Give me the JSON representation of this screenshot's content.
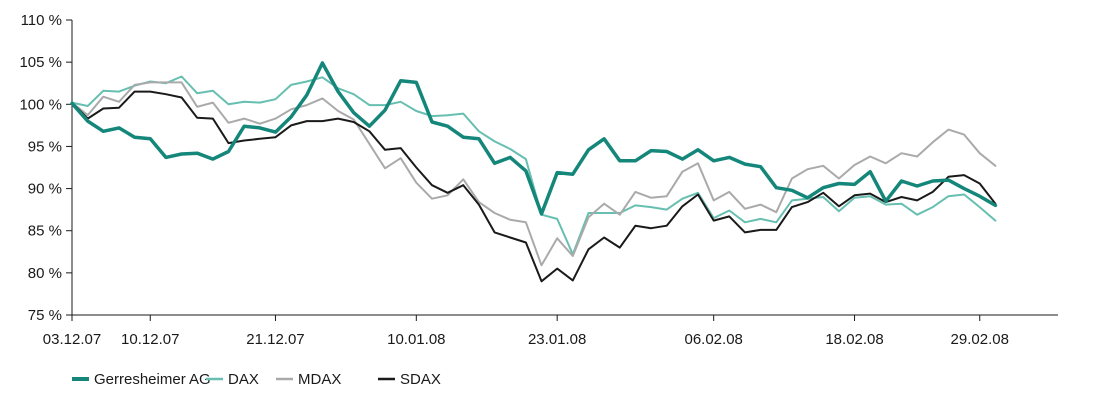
{
  "chart_data": {
    "type": "line",
    "title": "",
    "xlabel": "",
    "ylabel": "",
    "ylim": [
      75,
      110
    ],
    "ytick_values": [
      75,
      80,
      85,
      90,
      95,
      100,
      105,
      110
    ],
    "ytick_labels": [
      "75 %",
      "80 %",
      "85 %",
      "90 %",
      "95 %",
      "100 %",
      "105 %",
      "110 %"
    ],
    "x_index_range": [
      0,
      63
    ],
    "xticks": [
      {
        "index": 0,
        "label": "03.12.07"
      },
      {
        "index": 5,
        "label": "10.12.07"
      },
      {
        "index": 13,
        "label": "21.12.07"
      },
      {
        "index": 22,
        "label": "10.01.08"
      },
      {
        "index": 31,
        "label": "23.01.08"
      },
      {
        "index": 41,
        "label": "06.02.08"
      },
      {
        "index": 50,
        "label": "18.02.08"
      },
      {
        "index": 58,
        "label": "29.02.08"
      }
    ],
    "grid": false,
    "legend_position": "bottom-left",
    "series": [
      {
        "name": "Gerresheimer AG",
        "color": "#14877a",
        "width": 3.5,
        "values": [
          100.1,
          98,
          96.8,
          97.2,
          96.1,
          95.9,
          93.7,
          94.1,
          94.2,
          93.5,
          94.4,
          97.4,
          97.2,
          96.7,
          98.5,
          101.1,
          104.9,
          101.5,
          99,
          97.4,
          99.3,
          102.8,
          102.6,
          97.9,
          97.4,
          96.1,
          95.9,
          93,
          93.7,
          92.1,
          87,
          91.9,
          91.7,
          94.6,
          95.9,
          93.3,
          93.3,
          94.5,
          94.4,
          93.5,
          94.6,
          93.3,
          93.7,
          92.9,
          92.6,
          90.1,
          89.8,
          88.9,
          90.1,
          90.6,
          90.5,
          92,
          88.5,
          90.9,
          90.3,
          90.9,
          91,
          90,
          89.1,
          88
        ]
      },
      {
        "name": "DAX",
        "color": "#66bfb0",
        "width": 2,
        "values": [
          100.2,
          99.8,
          101.6,
          101.5,
          102.2,
          102.7,
          102.5,
          103.3,
          101.3,
          101.6,
          100,
          100.3,
          100.2,
          100.6,
          102.3,
          102.7,
          103.2,
          101.9,
          101.2,
          99.9,
          99.9,
          100.3,
          99.2,
          98.6,
          98.7,
          98.9,
          96.8,
          95.6,
          94.7,
          93.5,
          86.9,
          86.4,
          82.2,
          87.1,
          87.1,
          87.1,
          88,
          87.8,
          87.5,
          88.8,
          89.5,
          86.5,
          87.4,
          86,
          86.4,
          86,
          88.6,
          88.8,
          89,
          87.3,
          88.9,
          89.1,
          88.1,
          88.2,
          86.9,
          87.8,
          89.1,
          89.3,
          87.8,
          86.2
        ]
      },
      {
        "name": "MDAX",
        "color": "#aaaaaa",
        "width": 2,
        "values": [
          100.2,
          98.7,
          100.9,
          100.3,
          102.3,
          102.6,
          102.6,
          102.6,
          99.7,
          100.2,
          97.8,
          98.3,
          97.7,
          98.3,
          99.4,
          99.9,
          100.7,
          99.2,
          98.2,
          95.3,
          92.4,
          93.6,
          90.7,
          88.8,
          89.2,
          91.1,
          88.4,
          87.1,
          86.3,
          86,
          80.9,
          84.1,
          82,
          86.6,
          88.2,
          86.9,
          89.6,
          88.9,
          89.1,
          92,
          93,
          88.6,
          89.6,
          87.6,
          88.1,
          87.2,
          91.2,
          92.3,
          92.7,
          91.2,
          92.8,
          93.8,
          93,
          94.2,
          93.8,
          95.5,
          97,
          96.4,
          94.2,
          92.7
        ]
      },
      {
        "name": "SDAX",
        "color": "#1a1a1a",
        "width": 2,
        "values": [
          100.2,
          98.3,
          99.5,
          99.6,
          101.5,
          101.5,
          101.2,
          100.8,
          98.4,
          98.3,
          95.4,
          95.7,
          95.9,
          96.1,
          97.5,
          98,
          98,
          98.3,
          97.9,
          96.8,
          94.6,
          94.8,
          92.5,
          90.4,
          89.5,
          90.4,
          88.1,
          84.8,
          84.2,
          83.6,
          79,
          80.5,
          79.1,
          82.8,
          84.2,
          83,
          85.6,
          85.3,
          85.6,
          87.9,
          89.3,
          86.2,
          86.7,
          84.8,
          85.1,
          85.1,
          87.8,
          88.4,
          89.5,
          87.9,
          89.2,
          89.4,
          88.4,
          89,
          88.6,
          89.6,
          91.4,
          91.6,
          90.6,
          88.2
        ]
      }
    ]
  }
}
